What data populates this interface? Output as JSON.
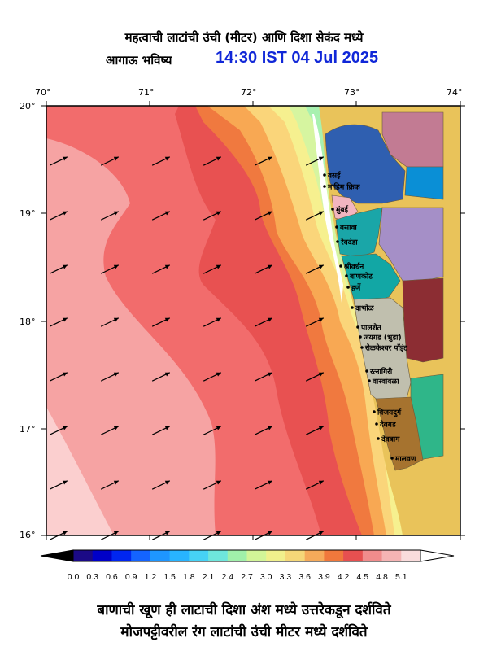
{
  "title": {
    "line1": "महत्वाची लाटांची उंची (मीटर) आणि दिशा सेकंद मध्ये",
    "line2": "आगाऊ भविष्य",
    "timestamp": "14:30 IST 04 Jul 2025"
  },
  "axes": {
    "x_ticks": [
      "70°",
      "71°",
      "72°",
      "73°",
      "74°"
    ],
    "y_ticks": [
      "20°",
      "19°",
      "18°",
      "17°",
      "16°"
    ]
  },
  "places": [
    "वसई",
    "माहिम क्रिक",
    "मुंबई",
    "वसावा",
    "रेवदंडा",
    "श्रीवर्धन",
    "बाणकोट",
    "हर्णे",
    "दाभोळ",
    "पालशेत",
    "जयगड (भुडा)",
    "रोळकेश्वर पॉइंट",
    "रत्नागिरी",
    "वारवांवळा",
    "विजयदुर्ग",
    "देवगड",
    "देवबाग",
    "मालवण"
  ],
  "colorbar": {
    "labels": [
      "0.0",
      "0.3",
      "0.6",
      "0.9",
      "1.2",
      "1.5",
      "1.8",
      "2.1",
      "2.4",
      "2.7",
      "3.0",
      "3.3",
      "3.6",
      "3.9",
      "4.2",
      "4.5",
      "4.8",
      "5.1"
    ],
    "colors": [
      "#1b0a86",
      "#0000c8",
      "#0026f0",
      "#1464ff",
      "#1e96ff",
      "#28b4ff",
      "#46d2f5",
      "#6ee6dc",
      "#a0f0aa",
      "#d2f598",
      "#f0f08c",
      "#f5d778",
      "#f5aa5a",
      "#f0783c",
      "#e65050",
      "#f08c8c",
      "#f5b4b4",
      "#fadcdc"
    ],
    "under_color": "#000000",
    "over_color": "#ffffff"
  },
  "footer": {
    "line1": "बाणाची खूण ही लाटाची दिशा अंश मध्ये उत्तरेकडून दर्शविते",
    "line2": "मोजपट्टीवरील रंग लाटांची उंची मीटर मध्ये दर्शविते"
  },
  "field_colors": {
    "zone1": "#fbcfcf",
    "zone2": "#f6a3a3",
    "zone3": "#f26c6c",
    "zone4": "#e85151",
    "zone5": "#f0793f",
    "zone6": "#f8a853",
    "zone7": "#fad57a",
    "zone8": "#f6f08f",
    "zone9": "#d6f5a0",
    "zone10": "#a8f1b0",
    "land": "#e9c35a",
    "districts": [
      "#c27b93",
      "#2f5fb0",
      "#f2b5c0",
      "#1aa6a8",
      "#a58fc7",
      "#12a7a5",
      "#c0bfae",
      "#8c2d33",
      "#2fb689",
      "#a6732f",
      "#0a8fd6"
    ]
  },
  "wave_direction_deg": 250
}
